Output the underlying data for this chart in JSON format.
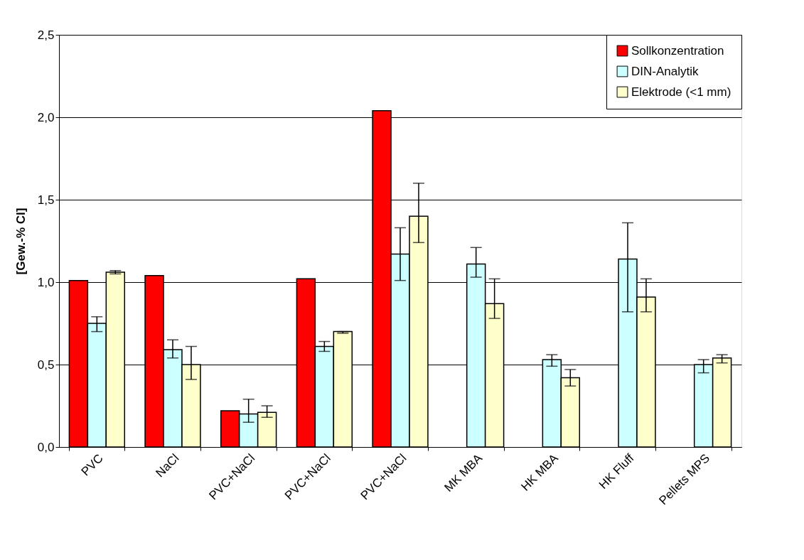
{
  "chart_data": {
    "type": "bar",
    "categories": [
      "PVC",
      "NaCl",
      "PVC+NaCl",
      "PVC+NaCl",
      "PVC+NaCl",
      "MK MBA",
      "HK MBA",
      "HK Fluff",
      "Pellets MPS"
    ],
    "ylabel": "[Gew.-% Cl]",
    "series": [
      {
        "name": "Sollkonzentration",
        "color": "#ff0000",
        "values": [
          1.01,
          1.04,
          0.22,
          1.02,
          2.04,
          null,
          null,
          null,
          null
        ]
      },
      {
        "name": "DIN-Analytik",
        "color": "#ccffff",
        "values": [
          0.75,
          0.59,
          0.2,
          0.61,
          1.17,
          1.11,
          0.53,
          1.14,
          0.5
        ],
        "errors": [
          [
            0.7,
            0.79
          ],
          [
            0.54,
            0.65
          ],
          [
            0.15,
            0.29
          ],
          [
            0.58,
            0.64
          ],
          [
            1.01,
            1.33
          ],
          [
            1.03,
            1.21
          ],
          [
            0.49,
            0.56
          ],
          [
            0.82,
            1.36
          ],
          [
            0.45,
            0.53
          ]
        ]
      },
      {
        "name": "Elektrode (<1 mm)",
        "color": "#ffffcc",
        "values": [
          1.06,
          0.5,
          0.21,
          0.7,
          1.4,
          0.87,
          0.42,
          0.91,
          0.54
        ],
        "errors": [
          [
            1.05,
            1.07
          ],
          [
            0.41,
            0.61
          ],
          [
            0.18,
            0.25
          ],
          [
            0.69,
            0.7
          ],
          [
            1.24,
            1.6
          ],
          [
            0.78,
            1.02
          ],
          [
            0.37,
            0.47
          ],
          [
            0.82,
            1.02
          ],
          [
            0.51,
            0.56
          ]
        ]
      }
    ],
    "ylim": [
      0,
      2.5
    ],
    "yticks": [
      {
        "value": 0,
        "label": "0,0"
      },
      {
        "value": 0.5,
        "label": "0,5"
      },
      {
        "value": 1.0,
        "label": "1,0"
      },
      {
        "value": 1.5,
        "label": "1,5"
      },
      {
        "value": 2.0,
        "label": "2,0"
      },
      {
        "value": 2.5,
        "label": "2,5"
      }
    ],
    "grid": "y",
    "legend": "top right"
  }
}
